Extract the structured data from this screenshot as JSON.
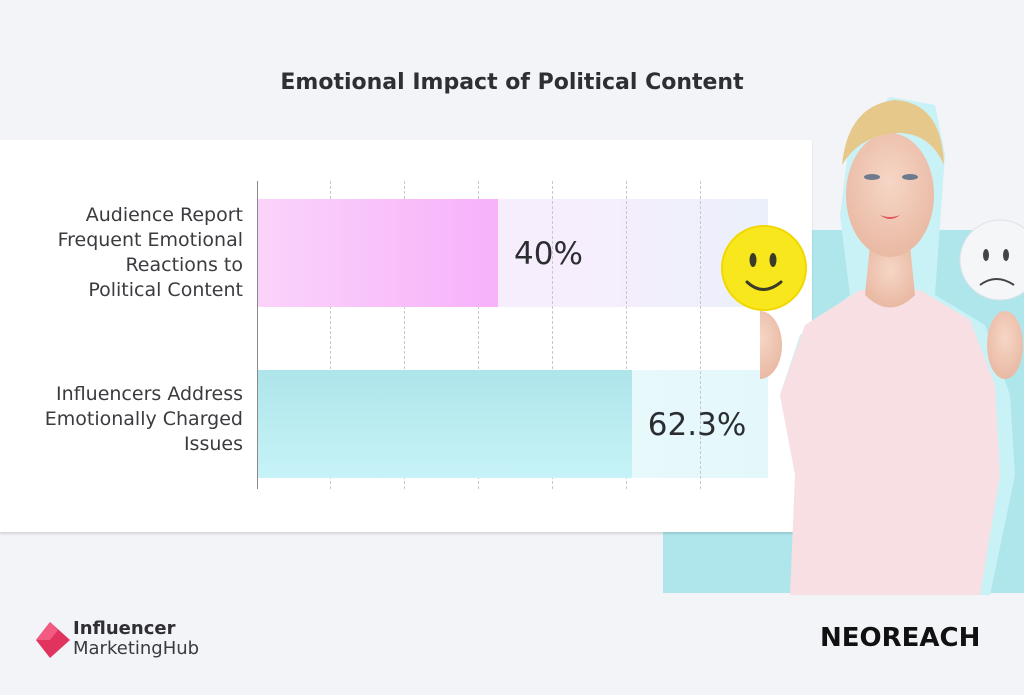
{
  "title": "Emotional Impact of Political Content",
  "chart_data": {
    "type": "bar",
    "orientation": "horizontal",
    "title": "Emotional Impact of Political Content",
    "categories": [
      "Audience Report Frequent Emotional Reactions to Political Content",
      "Influencers Address Emotionally Charged Issues"
    ],
    "category_lines": [
      [
        "Audience Report",
        "Frequent Emotional",
        "Reactions to",
        "Political Content"
      ],
      [
        "Influencers Address",
        "Emotionally Charged",
        "Issues"
      ]
    ],
    "values": [
      40,
      62.3
    ],
    "value_labels": [
      "40%",
      "62.3%"
    ],
    "xlim": [
      0,
      85
    ],
    "grid": true,
    "unit": "%"
  },
  "colors": {
    "pink_bar": "#f7b1fa",
    "teal_bar": "#aee5ea",
    "teal_accent": "#aee6ec",
    "logo_red": "#e0345e"
  },
  "logos": {
    "influencer_hub": {
      "line1": "Influencer",
      "line2": "MarketingHub"
    },
    "neoreach": "NEOREACH"
  }
}
